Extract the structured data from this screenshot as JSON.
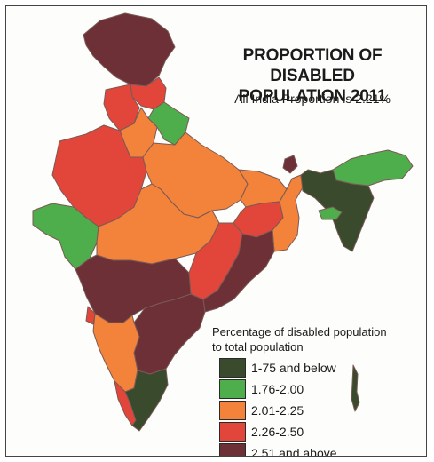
{
  "title_line1": "PROPORTION OF DISABLED",
  "title_line2": "POPULATION 2011",
  "subtitle": "All India Proportion is 2.21%",
  "legend": {
    "heading_line1": "Percentage of disabled population",
    "heading_line2": "to total population",
    "items": [
      {
        "label": "1-75 and below",
        "color": "#3a4a2c"
      },
      {
        "label": "1.76-2.00",
        "color": "#4fae4c"
      },
      {
        "label": "2.01-2.25",
        "color": "#f3823a"
      },
      {
        "label": "2.26-2.50",
        "color": "#e2463a"
      },
      {
        "label": "2.51 and above",
        "color": "#6c3036"
      }
    ]
  },
  "colors": {
    "background": "#fdfdfb",
    "border": "#444444",
    "boundary": "#7a5a55"
  },
  "regions": [
    {
      "name": "jammu-kashmir",
      "category": "2.51 and above"
    },
    {
      "name": "himachal-pradesh",
      "category": "2.26-2.50"
    },
    {
      "name": "punjab",
      "category": "2.26-2.50"
    },
    {
      "name": "uttarakhand",
      "category": "1.76-2.00"
    },
    {
      "name": "haryana",
      "category": "2.01-2.25"
    },
    {
      "name": "rajasthan",
      "category": "2.26-2.50"
    },
    {
      "name": "uttar-pradesh",
      "category": "2.01-2.25"
    },
    {
      "name": "gujarat",
      "category": "1.76-2.00"
    },
    {
      "name": "madhya-pradesh",
      "category": "2.01-2.25"
    },
    {
      "name": "bihar",
      "category": "2.01-2.25"
    },
    {
      "name": "jharkhand",
      "category": "2.26-2.50"
    },
    {
      "name": "west-bengal",
      "category": "2.01-2.25"
    },
    {
      "name": "sikkim",
      "category": "2.51 and above"
    },
    {
      "name": "chhattisgarh",
      "category": "2.26-2.50"
    },
    {
      "name": "odisha",
      "category": "2.51 and above"
    },
    {
      "name": "maharashtra",
      "category": "2.51 and above"
    },
    {
      "name": "telangana-andhra",
      "category": "2.51 and above"
    },
    {
      "name": "karnataka",
      "category": "2.01-2.25"
    },
    {
      "name": "goa",
      "category": "2.26-2.50"
    },
    {
      "name": "kerala",
      "category": "2.26-2.50"
    },
    {
      "name": "tamil-nadu",
      "category": "1-75 and below"
    },
    {
      "name": "arunachal-pradesh",
      "category": "1.76-2.00"
    },
    {
      "name": "assam-northeast",
      "category": "1-75 and below"
    },
    {
      "name": "meghalaya",
      "category": "1.76-2.00"
    },
    {
      "name": "andaman-nicobar",
      "category": "1-75 and below"
    }
  ]
}
